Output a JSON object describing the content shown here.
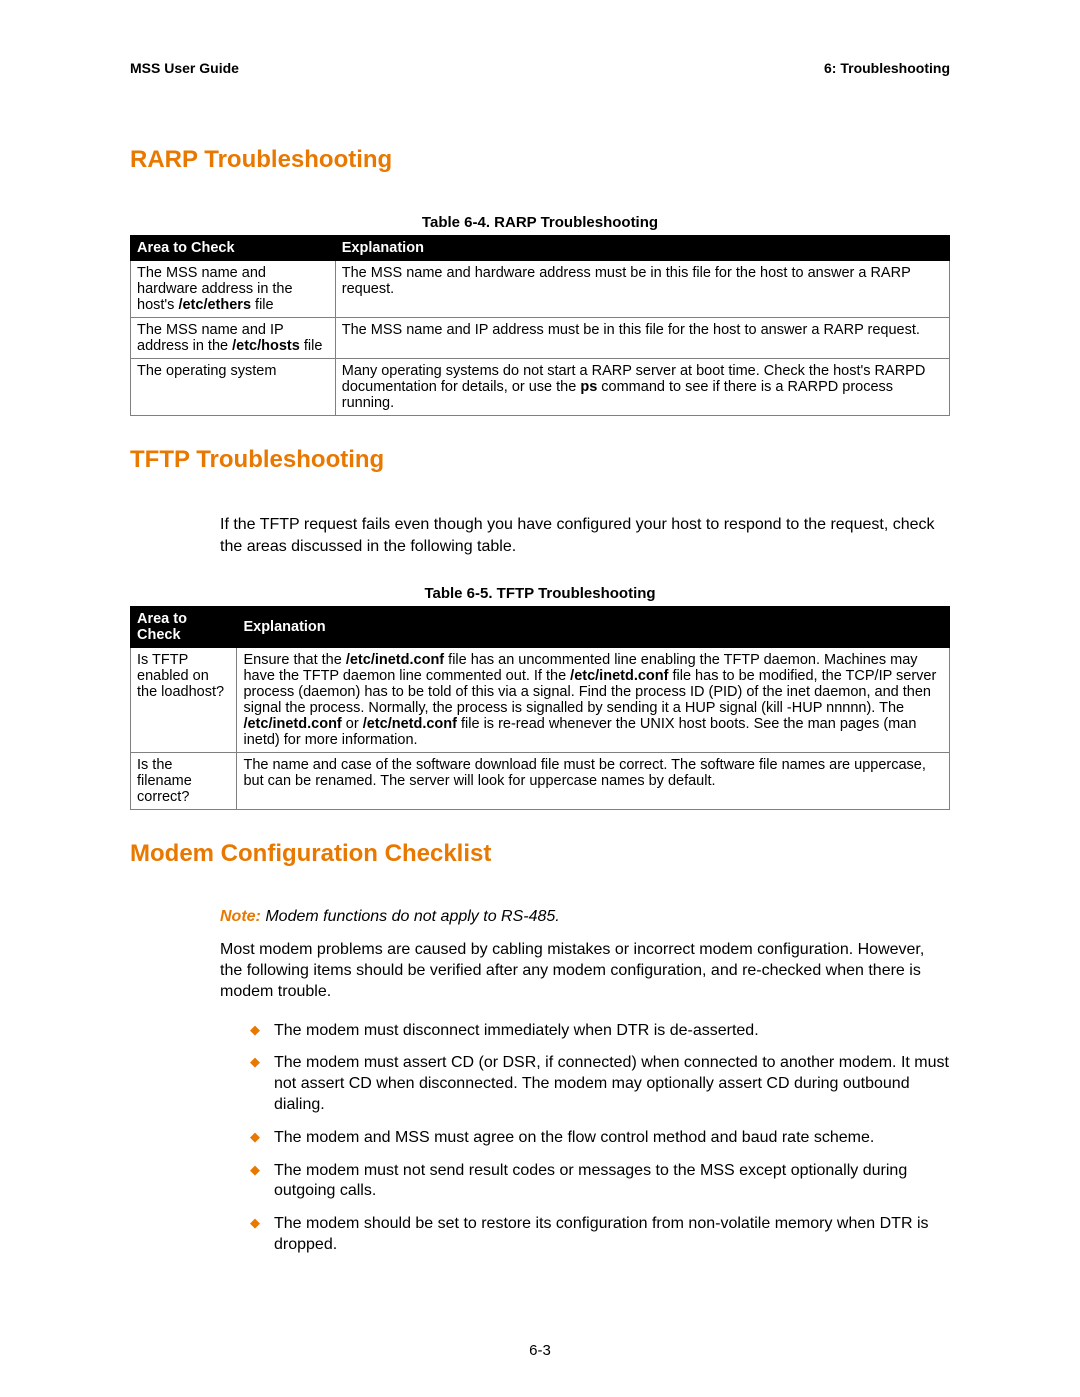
{
  "header": {
    "left": "MSS User Guide",
    "right": "6:  Troubleshooting"
  },
  "sections": {
    "rarp": {
      "title": "RARP Troubleshooting",
      "caption": "Table 6-4.  RARP Troubleshooting",
      "col1": "Area to Check",
      "col2": "Explanation",
      "rows": {
        "r0a1": "The MSS name and hardware address in the host's ",
        "r0a2": "/etc/ethers",
        "r0a3": " file",
        "r0b": "The MSS name and hardware address must be in this file for the host to answer a RARP request.",
        "r1a1": "The MSS name and IP address in the ",
        "r1a2": "/etc/hosts",
        "r1a3": " file",
        "r1b": "The MSS name and IP address must be in this file for the host to answer a RARP request.",
        "r2a": "The operating system",
        "r2b1": "Many operating systems do not start a RARP server at boot time. Check the host's RARPD documentation for details, or use the ",
        "r2b2": "ps",
        "r2b3": " command to see if there is a RARPD process running."
      }
    },
    "tftp": {
      "title": "TFTP Troubleshooting",
      "intro": "If the TFTP request fails even though you have configured your host to respond to the request, check the areas discussed in the following table.",
      "caption": "Table 6-5.  TFTP Troubleshooting",
      "col1": "Area to Check",
      "col2": "Explanation",
      "rows": {
        "r0a": "Is TFTP enabled on the loadhost?",
        "r0b1": "Ensure that the ",
        "r0b2": "/etc/inetd.conf",
        "r0b3": " file has an uncommented line enabling the TFTP daemon. Machines may have the TFTP daemon line commented out. If the ",
        "r0b4": "/etc/inetd.conf",
        "r0b5": " file has to be modified, the TCP/IP server process (daemon) has to be told of this via a signal. Find the process ID (PID) of the inet daemon, and then signal the process. Normally, the process is signalled by sending it a HUP signal (kill -HUP nnnnn). The ",
        "r0b6": "/etc/inetd.conf",
        "r0b7": " or ",
        "r0b8": "/etc/netd.conf",
        "r0b9": " file is re-read whenever the UNIX host boots. See the man pages (man inetd) for more information.",
        "r1a": "Is the filename correct?",
        "r1b": "The name and case of the software download file must be correct. The software file names are uppercase, but can be renamed. The server will look for uppercase names by default."
      }
    },
    "modem": {
      "title": "Modem Configuration Checklist",
      "noteLabel": "Note:",
      "noteText": " Modem functions do not apply to RS-485.",
      "para": "Most modem problems are caused by cabling mistakes or incorrect modem configuration. However, the following items should be verified after any modem configuration, and re-checked when there is modem trouble.",
      "bullets": {
        "b0": "The modem must disconnect immediately when DTR is de-asserted.",
        "b1": "The modem must assert CD (or DSR, if connected) when connected to another modem. It must not assert CD when disconnected. The modem may optionally assert CD during outbound dialing.",
        "b2": "The modem and MSS must agree on the flow control method and baud rate scheme.",
        "b3": "The modem must not send result codes or messages to the MSS except optionally during outgoing calls.",
        "b4": "The modem should be set to restore its configuration from non-volatile memory when DTR is dropped."
      }
    }
  },
  "pageNumber": "6-3",
  "colors": {
    "accent": "#e87800",
    "tableHeaderBg": "#000000",
    "tableHeaderFg": "#ffffff",
    "border": "#808080"
  }
}
